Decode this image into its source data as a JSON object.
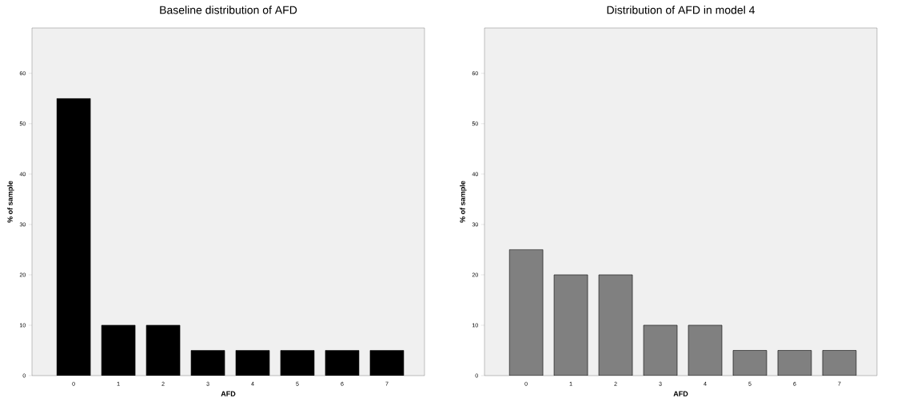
{
  "chart_data": [
    {
      "type": "bar",
      "title": "Baseline distribution of AFD",
      "xlabel": "AFD",
      "ylabel": "% of sample",
      "categories": [
        "0",
        "1",
        "2",
        "3",
        "4",
        "5",
        "6",
        "7"
      ],
      "values": [
        55,
        10,
        10,
        5,
        5,
        5,
        5,
        5
      ],
      "color": "#000000",
      "ylim": [
        0,
        69
      ],
      "yticks": [
        0,
        10,
        20,
        30,
        40,
        50,
        60
      ],
      "grid": false
    },
    {
      "type": "bar",
      "title": "Distribution of AFD in model 4",
      "xlabel": "AFD",
      "ylabel": "% of sample",
      "categories": [
        "0",
        "1",
        "2",
        "3",
        "4",
        "5",
        "6",
        "7"
      ],
      "values": [
        25,
        20,
        20,
        10,
        10,
        5,
        5,
        5
      ],
      "color": "#808080",
      "ylim": [
        0,
        69
      ],
      "yticks": [
        0,
        10,
        20,
        30,
        40,
        50,
        60
      ],
      "grid": false
    }
  ]
}
